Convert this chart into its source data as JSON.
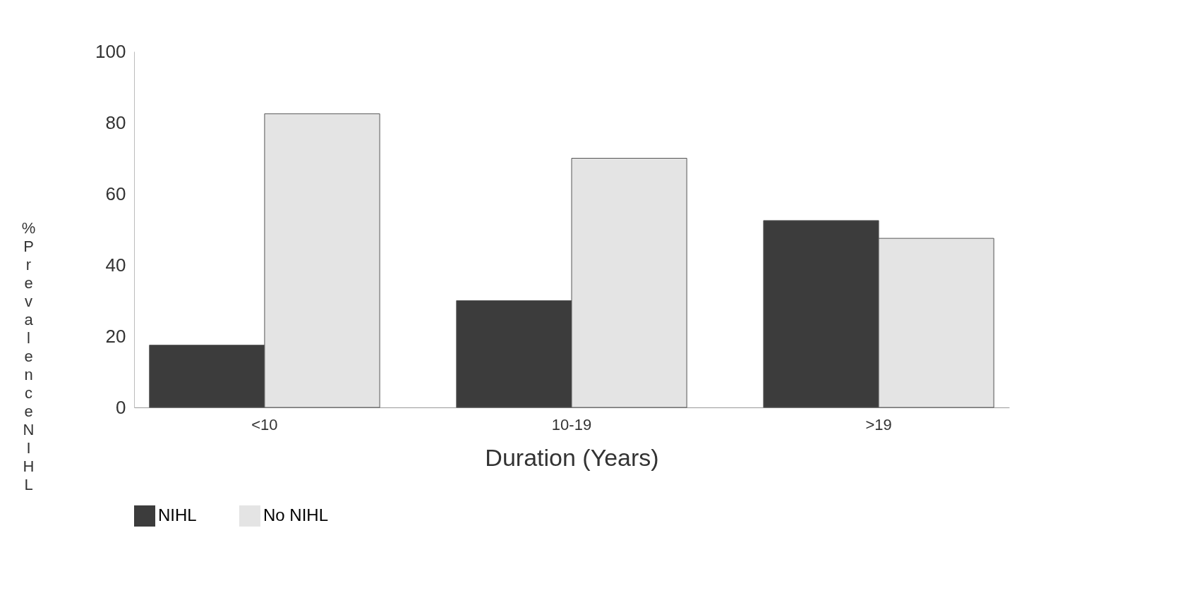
{
  "chart_data": {
    "type": "bar",
    "xlabel": "Duration (Years)",
    "ylabel": "% Prevalence NIHL",
    "categories": [
      "<10",
      "10-19",
      ">19"
    ],
    "series": [
      {
        "name": "NIHL",
        "color": "#3c3c3c",
        "values": [
          17.5,
          30,
          52.5
        ]
      },
      {
        "name": "No NIHL",
        "color": "#e4e4e4",
        "values": [
          82.5,
          70,
          47.5
        ]
      }
    ],
    "ylim": [
      0,
      100
    ],
    "yticks": [
      0,
      20,
      40,
      60,
      80,
      100
    ],
    "grid": false,
    "legend": "bottom"
  }
}
